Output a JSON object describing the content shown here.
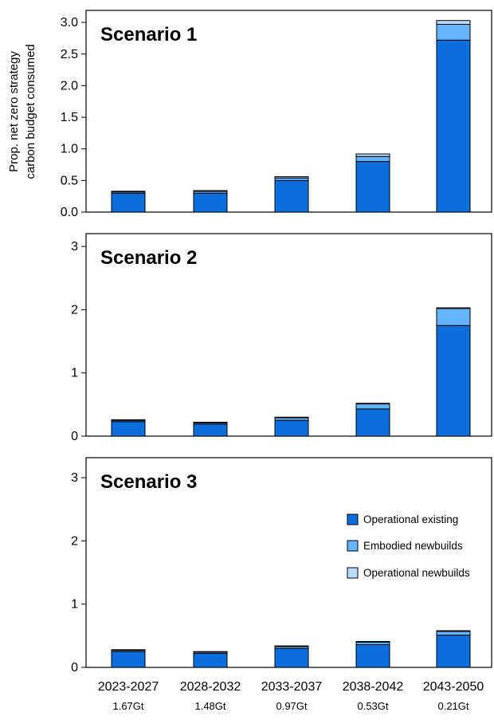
{
  "y_axis_label_line1": "Prop. net zero strategy",
  "y_axis_label_line2": "carbon budget consumed",
  "categories": [
    "2023-2027",
    "2028-2032",
    "2033-2037",
    "2038-2042",
    "2043-2050"
  ],
  "budgets": [
    "1.67Gt",
    "1.48Gt",
    "0.97Gt",
    "0.53Gt",
    "0.21Gt"
  ],
  "colors": {
    "operational_existing": "#0a6fdc",
    "embodied_newbuilds": "#66b3ff",
    "operational_newbuilds": "#b8dcff",
    "outline": "#000000"
  },
  "legend": {
    "items": [
      {
        "key": "operational_existing",
        "label": "Operational existing"
      },
      {
        "key": "embodied_newbuilds",
        "label": "Embodied newbuilds"
      },
      {
        "key": "operational_newbuilds",
        "label": "Operational newbuilds"
      }
    ],
    "position": "right, inside Scenario 3 panel"
  },
  "chart_data": [
    {
      "type": "bar",
      "stacked": true,
      "title": "Scenario 1",
      "categories": [
        "2023-2027",
        "2028-2032",
        "2033-2037",
        "2038-2042",
        "2043-2050"
      ],
      "ylim": [
        0,
        3.2
      ],
      "yticks": [
        "0.0",
        "0.5",
        "1.0",
        "1.5",
        "2.0",
        "2.5",
        "3.0"
      ],
      "ytick_values": [
        0,
        0.5,
        1.0,
        1.5,
        2.0,
        2.5,
        3.0
      ],
      "series": [
        {
          "name": "Operational existing",
          "values": [
            0.3,
            0.3,
            0.5,
            0.8,
            2.72
          ]
        },
        {
          "name": "Embodied newbuilds",
          "values": [
            0.02,
            0.03,
            0.04,
            0.08,
            0.25
          ]
        },
        {
          "name": "Operational newbuilds",
          "values": [
            0.01,
            0.01,
            0.02,
            0.04,
            0.06
          ]
        }
      ]
    },
    {
      "type": "bar",
      "stacked": true,
      "title": "Scenario 2",
      "categories": [
        "2023-2027",
        "2028-2032",
        "2033-2037",
        "2038-2042",
        "2043-2050"
      ],
      "ylim": [
        0,
        3.2
      ],
      "yticks": [
        "0",
        "1",
        "2",
        "3"
      ],
      "ytick_values": [
        0,
        1,
        2,
        3
      ],
      "series": [
        {
          "name": "Operational existing",
          "values": [
            0.23,
            0.19,
            0.25,
            0.43,
            1.75
          ]
        },
        {
          "name": "Embodied newbuilds",
          "values": [
            0.02,
            0.02,
            0.04,
            0.08,
            0.27
          ]
        },
        {
          "name": "Operational newbuilds",
          "values": [
            0.01,
            0.01,
            0.01,
            0.01,
            0.01
          ]
        }
      ]
    },
    {
      "type": "bar",
      "stacked": true,
      "title": "Scenario 3",
      "categories": [
        "2023-2027",
        "2028-2032",
        "2033-2037",
        "2038-2042",
        "2043-2050"
      ],
      "ylim": [
        0,
        3.2
      ],
      "yticks": [
        "0",
        "1",
        "2",
        "3"
      ],
      "ytick_values": [
        0,
        1,
        2,
        3
      ],
      "series": [
        {
          "name": "Operational existing",
          "values": [
            0.25,
            0.22,
            0.3,
            0.36,
            0.51
          ]
        },
        {
          "name": "Embodied newbuilds",
          "values": [
            0.02,
            0.02,
            0.03,
            0.04,
            0.06
          ]
        },
        {
          "name": "Operational newbuilds",
          "values": [
            0.01,
            0.01,
            0.01,
            0.01,
            0.01
          ]
        }
      ]
    }
  ]
}
